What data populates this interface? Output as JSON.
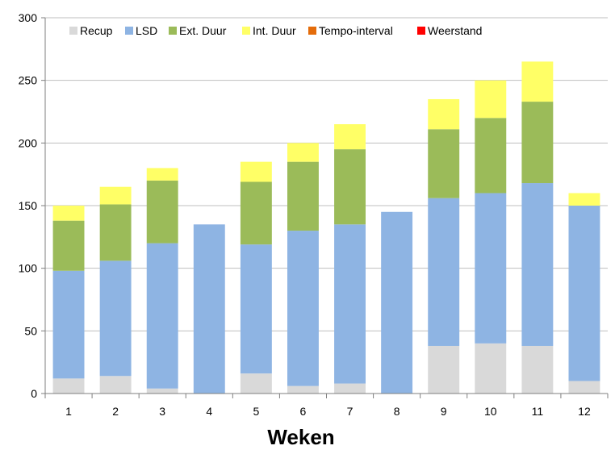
{
  "chart_data": {
    "type": "bar",
    "stacked": true,
    "title": "",
    "xlabel": "Weken",
    "ylabel": "",
    "ylim": [
      0,
      300
    ],
    "yticks": [
      0,
      50,
      100,
      150,
      200,
      250,
      300
    ],
    "grid": true,
    "legend_position": "top",
    "categories": [
      "1",
      "2",
      "3",
      "4",
      "5",
      "6",
      "7",
      "8",
      "9",
      "10",
      "11",
      "12"
    ],
    "series": [
      {
        "name": "Recup",
        "color": "#d9d9d9",
        "values": [
          12,
          14,
          4,
          0,
          16,
          6,
          8,
          0,
          38,
          40,
          38,
          10
        ]
      },
      {
        "name": "LSD",
        "color": "#8eb4e3",
        "values": [
          86,
          92,
          116,
          135,
          103,
          124,
          127,
          145,
          118,
          120,
          130,
          140
        ]
      },
      {
        "name": "Ext. Duur",
        "color": "#9bbb59",
        "values": [
          40,
          45,
          50,
          0,
          50,
          55,
          60,
          0,
          55,
          60,
          65,
          0
        ]
      },
      {
        "name": "Int. Duur",
        "color": "#ffff66",
        "values": [
          12,
          14,
          10,
          0,
          16,
          15,
          20,
          0,
          24,
          30,
          32,
          10
        ]
      },
      {
        "name": "Tempo-interval",
        "color": "#e46c0a",
        "values": [
          0,
          0,
          0,
          0,
          0,
          0,
          0,
          0,
          0,
          0,
          0,
          0
        ]
      },
      {
        "name": "Weerstand",
        "color": "#ff0000",
        "values": [
          0,
          0,
          0,
          0,
          0,
          0,
          0,
          0,
          0,
          0,
          0,
          0
        ]
      }
    ]
  }
}
